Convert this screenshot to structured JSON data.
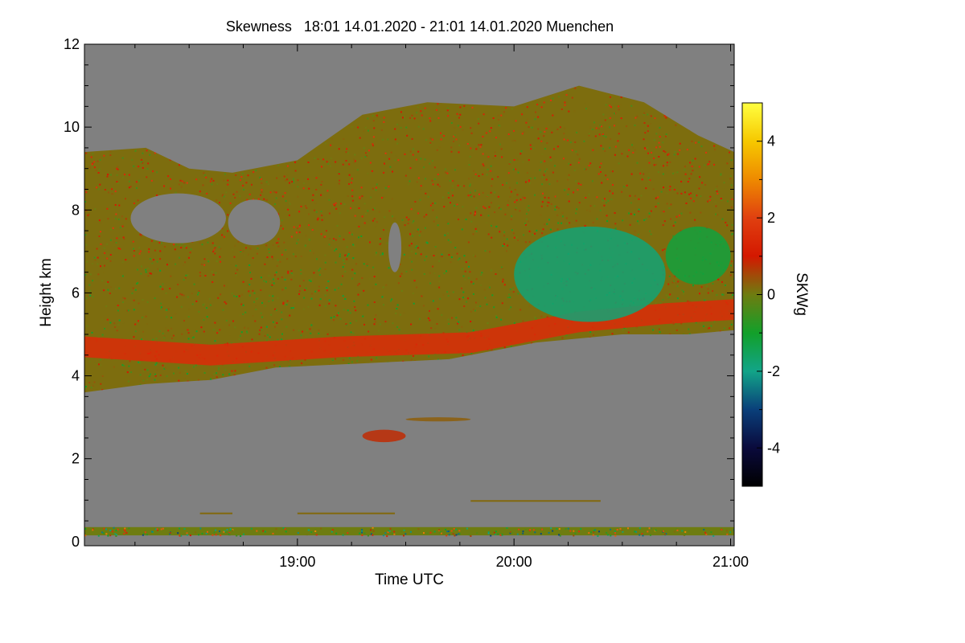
{
  "chart_data": {
    "type": "heatmap",
    "title": "Skewness   18:01 14.01.2020 - 21:01 14.01.2020 Muenchen",
    "xlabel": "Time UTC",
    "ylabel": "Height km",
    "x_range_hours": [
      18.0167,
      21.0167
    ],
    "y_range_km": [
      -0.1,
      12.0
    ],
    "x_ticks": [
      {
        "value": 19.0,
        "label": "19:00"
      },
      {
        "value": 20.0,
        "label": "20:00"
      },
      {
        "value": 21.0,
        "label": "21:00"
      }
    ],
    "y_ticks": [
      {
        "value": 0,
        "label": "0"
      },
      {
        "value": 2,
        "label": "2"
      },
      {
        "value": 4,
        "label": "4"
      },
      {
        "value": 6,
        "label": "6"
      },
      {
        "value": 8,
        "label": "8"
      },
      {
        "value": 10,
        "label": "10"
      },
      {
        "value": 12,
        "label": "12"
      }
    ],
    "colorbar": {
      "label": "SKWg",
      "range": [
        -5,
        5
      ],
      "ticks": [
        {
          "value": 4,
          "label": "4"
        },
        {
          "value": 2,
          "label": "2"
        },
        {
          "value": 0,
          "label": "0"
        },
        {
          "value": -2,
          "label": "-2"
        },
        {
          "value": -4,
          "label": "-4"
        }
      ],
      "stops": [
        {
          "value": -5,
          "color": "#000000"
        },
        {
          "value": -4,
          "color": "#0a0a3c"
        },
        {
          "value": -3,
          "color": "#0a3f7a"
        },
        {
          "value": -2,
          "color": "#12a488"
        },
        {
          "value": -1,
          "color": "#12a02a"
        },
        {
          "value": 0,
          "color": "#6e7c10"
        },
        {
          "value": 1,
          "color": "#d41800"
        },
        {
          "value": 2,
          "color": "#e04010"
        },
        {
          "value": 3,
          "color": "#ee8a00"
        },
        {
          "value": 4,
          "color": "#f6c800"
        },
        {
          "value": 5,
          "color": "#ffff40"
        }
      ]
    },
    "background_color": "#808080",
    "features": [
      {
        "name": "main cloud layer top",
        "type": "boundary",
        "points": [
          [
            18.0167,
            9.4
          ],
          [
            18.3,
            9.5
          ],
          [
            18.5,
            9.0
          ],
          [
            18.7,
            8.9
          ],
          [
            19.0,
            9.2
          ],
          [
            19.3,
            10.3
          ],
          [
            19.6,
            10.6
          ],
          [
            20.0,
            10.5
          ],
          [
            20.3,
            11.0
          ],
          [
            20.6,
            10.6
          ],
          [
            20.85,
            9.8
          ],
          [
            21.0167,
            9.4
          ]
        ]
      },
      {
        "name": "main cloud layer base",
        "type": "boundary",
        "points": [
          [
            18.0167,
            3.6
          ],
          [
            18.3,
            3.8
          ],
          [
            18.6,
            3.9
          ],
          [
            18.9,
            4.2
          ],
          [
            19.3,
            4.3
          ],
          [
            19.7,
            4.4
          ],
          [
            20.1,
            4.8
          ],
          [
            20.5,
            5.0
          ],
          [
            20.8,
            5.0
          ],
          [
            21.0167,
            5.1
          ]
        ]
      },
      {
        "name": "red layer near cloud base",
        "type": "band",
        "value": 1.5,
        "center_points": [
          [
            18.0167,
            4.7
          ],
          [
            18.6,
            4.5
          ],
          [
            19.2,
            4.7
          ],
          [
            19.8,
            4.8
          ],
          [
            20.3,
            5.3
          ],
          [
            20.7,
            5.5
          ],
          [
            21.0167,
            5.6
          ]
        ]
      },
      {
        "name": "green patch",
        "type": "region",
        "value": -1.8,
        "time_hours": [
          20.0,
          20.7
        ],
        "height_km": [
          5.3,
          7.6
        ]
      },
      {
        "name": "green patch",
        "type": "region",
        "value": -1.2,
        "time_hours": [
          20.7,
          21.0
        ],
        "height_km": [
          6.2,
          7.6
        ]
      },
      {
        "name": "small cloud",
        "type": "region",
        "value": 0.8,
        "time_hours": [
          19.3,
          19.5
        ],
        "height_km": [
          2.4,
          2.7
        ]
      },
      {
        "name": "small cloud",
        "type": "region",
        "value": 0.3,
        "time_hours": [
          19.5,
          19.8
        ],
        "height_km": [
          2.9,
          3.0
        ]
      },
      {
        "name": "thin layers",
        "type": "lines",
        "value": 0.2,
        "height_km": [
          0.7,
          1.1
        ]
      },
      {
        "name": "surface noise band",
        "type": "band",
        "value": 0,
        "height_km": [
          0.15,
          0.35
        ]
      }
    ]
  }
}
